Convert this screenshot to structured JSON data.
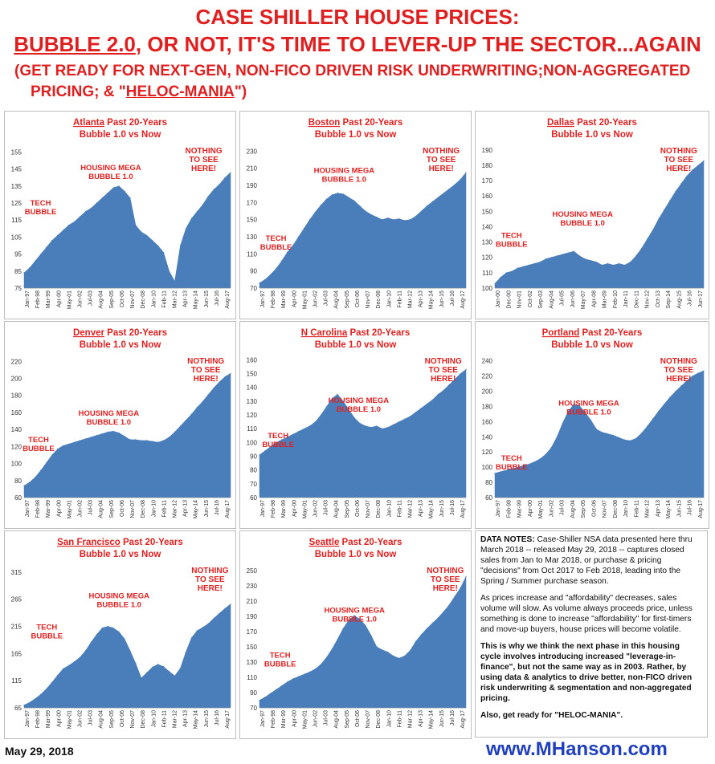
{
  "header": {
    "line1": "CASE SHILLER HOUSE PRICES:",
    "line2_a": "BUBBLE 2.0",
    "line2_b": ", OR NOT, IT'S TIME TO LEVER-UP THE SECTOR...AGAIN",
    "line3": "(GET READY FOR NEXT-GEN, NON-FICO DRIVEN RISK UNDERWRITING;NON-AGGREGATED",
    "line4_a": "PRICING; & \"",
    "line4_b": "HELOC-MANIA",
    "line4_c": "\")"
  },
  "notes": {
    "p1_label": "DATA NOTES:",
    "p1_text": " Case-Shiller NSA data presented here thru March 2018 -- released May 29, 2018 -- captures closed sales from Jan to Mar 2018, or purchase & pricing \"decisions\" from Oct 2017 to Feb 2018, leading into the Spring / Summer purchase season.",
    "p2": "As prices increase and \"affordability\" decreases, sales volume will slow. As volume always proceeds price, unless something is done to increase \"affordability\" for first-timers and move-up buyers, house prices will become volatile.",
    "p3": "This is why we think the next phase in this housing cycle involves introducing increased \"leverage-in-finance\", but not the same way as in 2003.  Rather,  by using data & analytics to drive better, non-FICO driven risk underwriting & segmentation  and non-aggregated pricing.",
    "p4": "Also, get ready for \"HELOC-MANIA\"."
  },
  "footer": {
    "date": "May 29, 2018",
    "site": "www.MHanson.com"
  },
  "colors": {
    "fill": "#4a7ebb",
    "title_red": "#e02020",
    "link_blue": "#1f3fbf"
  },
  "chart_data": [
    {
      "type": "area",
      "city": "Atlanta",
      "subtitle": " Past 20-Years",
      "subtitle2": "Bubble 1.0 vs Now",
      "yticks": [
        75,
        85,
        95,
        105,
        115,
        125,
        135,
        145,
        155
      ],
      "ylim": [
        75,
        158
      ],
      "xlabels": [
        "Jan-97",
        "Feb-98",
        "Mar-99",
        "Apr-00",
        "May-01",
        "Jun-02",
        "Jul-03",
        "Aug-04",
        "Sep-05",
        "Oct-06",
        "Nov-07",
        "Dec-08",
        "Jan-10",
        "Feb-11",
        "Mar-12",
        "Apr-13",
        "May-14",
        "Jun-15",
        "Jul-16",
        "Aug-17"
      ],
      "values": [
        84,
        87,
        91,
        95,
        99,
        103,
        106,
        109,
        112,
        114,
        117,
        120,
        122,
        125,
        128,
        131,
        134,
        135,
        132,
        128,
        112,
        108,
        106,
        103,
        100,
        96,
        85,
        79,
        100,
        110,
        116,
        120,
        124,
        129,
        133,
        136,
        140,
        143
      ],
      "annotations": [
        {
          "text": "TECH BUBBLE",
          "lines": [
            "TECH",
            "BUBBLE"
          ],
          "at": [
            0.08,
            0.37
          ]
        },
        {
          "text": "HOUSING MEGA BUBBLE 1.0",
          "lines": [
            "HOUSING MEGA",
            "BUBBLE 1.0"
          ],
          "at": [
            0.42,
            0.12
          ]
        },
        {
          "text": "NOTHING TO SEE HERE!",
          "lines": [
            "NOTHING",
            "TO SEE",
            "HERE!"
          ],
          "at": [
            0.87,
            0.0
          ]
        }
      ]
    },
    {
      "type": "area",
      "city": "Boston",
      "subtitle": " Past 20-Years",
      "subtitle2": "Bubble 1.0 vs Now",
      "yticks": [
        70,
        90,
        110,
        130,
        150,
        170,
        190,
        210,
        230
      ],
      "ylim": [
        70,
        235
      ],
      "xlabels": [
        "Jan-97",
        "Feb-98",
        "Mar-99",
        "Apr-00",
        "May-01",
        "Jun-02",
        "Jul-03",
        "Aug-04",
        "Sep-05",
        "Oct-06",
        "Nov-07",
        "Dec-08",
        "Jan-10",
        "Feb-11",
        "Mar-12",
        "Apr-13",
        "May-14",
        "Jun-15",
        "Jul-16",
        "Aug-17"
      ],
      "values": [
        76,
        80,
        86,
        93,
        102,
        112,
        120,
        130,
        140,
        150,
        159,
        167,
        174,
        179,
        181,
        180,
        176,
        172,
        166,
        160,
        156,
        153,
        150,
        152,
        150,
        151,
        149,
        150,
        154,
        160,
        166,
        171,
        176,
        181,
        186,
        191,
        197,
        205
      ],
      "annotations": [
        {
          "text": "TECH BUBBLE",
          "lines": [
            "TECH",
            "BUBBLE"
          ],
          "at": [
            0.08,
            0.62
          ]
        },
        {
          "text": "HOUSING MEGA BUBBLE 1.0",
          "lines": [
            "HOUSING MEGA",
            "BUBBLE 1.0"
          ],
          "at": [
            0.41,
            0.14
          ]
        },
        {
          "text": "NOTHING TO SEE HERE!",
          "lines": [
            "NOTHING",
            "TO SEE",
            "HERE!"
          ],
          "at": [
            0.88,
            0.0
          ]
        }
      ]
    },
    {
      "type": "area",
      "city": "Dallas",
      "subtitle": " Past 20-Years",
      "subtitle2": "Bubble 1.0 vs Now",
      "yticks": [
        100,
        110,
        120,
        130,
        140,
        150,
        160,
        170,
        180,
        190
      ],
      "ylim": [
        100,
        192
      ],
      "xlabels": [
        "Jan-00",
        "Dec-00",
        "Nov-01",
        "Oct-02",
        "Sep-03",
        "Aug-04",
        "Jul-05",
        "Jun-06",
        "May-07",
        "Apr-08",
        "Mar-09",
        "Feb-10",
        "Jan-11",
        "Dec-11",
        "Nov-12",
        "Oct-13",
        "Sep-14",
        "Aug-15",
        "Jul-16",
        "Jun-17"
      ],
      "values": [
        103,
        107,
        110,
        111,
        113,
        114,
        115,
        116,
        117,
        119,
        120,
        121,
        122,
        123,
        124,
        121,
        119,
        118,
        117,
        115,
        116,
        115,
        116,
        115,
        117,
        121,
        126,
        132,
        138,
        145,
        151,
        157,
        163,
        168,
        173,
        177,
        180,
        183
      ],
      "annotations": [
        {
          "text": "TECH BUBBLE",
          "lines": [
            "TECH",
            "BUBBLE"
          ],
          "at": [
            0.08,
            0.6
          ]
        },
        {
          "text": "HOUSING MEGA BUBBLE 1.0",
          "lines": [
            "HOUSING MEGA",
            "BUBBLE 1.0"
          ],
          "at": [
            0.42,
            0.45
          ]
        },
        {
          "text": "NOTHING TO SEE HERE!",
          "lines": [
            "NOTHING",
            "TO SEE",
            "HERE!"
          ],
          "at": [
            0.88,
            0.0
          ]
        }
      ]
    },
    {
      "type": "area",
      "city": "Denver",
      "subtitle": " Past 20-Years",
      "subtitle2": "Bubble 1.0 vs Now",
      "yticks": [
        60,
        80,
        100,
        120,
        140,
        160,
        180,
        200,
        220
      ],
      "ylim": [
        60,
        225
      ],
      "xlabels": [
        "Jan-97",
        "Feb-98",
        "Mar-99",
        "Apr-00",
        "May-01",
        "Jun-02",
        "Jul-03",
        "Aug-04",
        "Sep-05",
        "Oct-06",
        "Nov-07",
        "Dec-08",
        "Jan-10",
        "Feb-11",
        "Mar-12",
        "Apr-13",
        "May-14",
        "Jun-15",
        "Jul-16",
        "Aug-17"
      ],
      "values": [
        74,
        78,
        84,
        92,
        101,
        110,
        117,
        121,
        123,
        125,
        127,
        129,
        131,
        133,
        135,
        137,
        138,
        136,
        132,
        128,
        128,
        127,
        127,
        126,
        125,
        127,
        131,
        137,
        144,
        151,
        158,
        166,
        173,
        181,
        189,
        196,
        202,
        206
      ],
      "annotations": [
        {
          "text": "TECH BUBBLE",
          "lines": [
            "TECH",
            "BUBBLE"
          ],
          "at": [
            0.07,
            0.56
          ]
        },
        {
          "text": "HOUSING MEGA BUBBLE 1.0",
          "lines": [
            "HOUSING MEGA",
            "BUBBLE 1.0"
          ],
          "at": [
            0.41,
            0.37
          ]
        },
        {
          "text": "NOTHING TO SEE HERE!",
          "lines": [
            "NOTHING",
            "TO SEE",
            "HERE!"
          ],
          "at": [
            0.88,
            0.0
          ]
        }
      ]
    },
    {
      "type": "area",
      "city": "N Carolina",
      "subtitle": " Past 20-Years",
      "subtitle2": "Bubble 1.0 vs Now",
      "yticks": [
        60,
        70,
        80,
        90,
        100,
        110,
        120,
        130,
        140,
        150,
        160
      ],
      "ylim": [
        60,
        162
      ],
      "xlabels": [
        "Jan-97",
        "Feb-98",
        "Mar-99",
        "Apr-00",
        "May-01",
        "Jun-02",
        "Jul-03",
        "Aug-04",
        "Sep-05",
        "Oct-06",
        "Nov-07",
        "Dec-08",
        "Jan-10",
        "Feb-11",
        "Mar-12",
        "Apr-13",
        "May-14",
        "Jun-15",
        "Jul-16",
        "Aug-17"
      ],
      "values": [
        91,
        94,
        97,
        100,
        102,
        104,
        106,
        108,
        110,
        112,
        115,
        120,
        126,
        132,
        135,
        130,
        124,
        118,
        114,
        112,
        111,
        112,
        110,
        111,
        113,
        115,
        117,
        119,
        122,
        125,
        128,
        131,
        135,
        138,
        142,
        146,
        150,
        153
      ],
      "annotations": [
        {
          "text": "TECH BUBBLE",
          "lines": [
            "TECH",
            "BUBBLE"
          ],
          "at": [
            0.09,
            0.53
          ]
        },
        {
          "text": "HOUSING MEGA BUBBLE 1.0",
          "lines": [
            "HOUSING MEGA",
            "BUBBLE 1.0"
          ],
          "at": [
            0.48,
            0.28
          ]
        },
        {
          "text": "NOTHING TO SEE HERE!",
          "lines": [
            "NOTHING",
            "TO SEE",
            "HERE!"
          ],
          "at": [
            0.89,
            0.0
          ]
        }
      ]
    },
    {
      "type": "area",
      "city": "Portland",
      "subtitle": " Past 20-Years",
      "subtitle2": "Bubble 1.0 vs Now",
      "yticks": [
        60,
        80,
        100,
        120,
        140,
        160,
        180,
        200,
        220,
        240
      ],
      "ylim": [
        60,
        245
      ],
      "xlabels": [
        "Jan-97",
        "Feb-98",
        "Mar-99",
        "Apr-00",
        "May-01",
        "Jun-02",
        "Jul-03",
        "Aug-04",
        "Sep-05",
        "Oct-06",
        "Nov-07",
        "Dec-08",
        "Jan-10",
        "Feb-11",
        "Mar-12",
        "Apr-13",
        "May-14",
        "Jun-15",
        "Jul-16",
        "Aug-17"
      ],
      "values": [
        92,
        94,
        96,
        98,
        100,
        102,
        104,
        107,
        111,
        117,
        126,
        140,
        158,
        174,
        183,
        181,
        172,
        162,
        150,
        146,
        144,
        142,
        139,
        136,
        135,
        138,
        145,
        154,
        164,
        174,
        183,
        192,
        200,
        207,
        214,
        220,
        224,
        227
      ],
      "annotations": [
        {
          "text": "TECH BUBBLE",
          "lines": [
            "TECH",
            "BUBBLE"
          ],
          "at": [
            0.08,
            0.69
          ]
        },
        {
          "text": "HOUSING MEGA BUBBLE 1.0",
          "lines": [
            "HOUSING MEGA",
            "BUBBLE 1.0"
          ],
          "at": [
            0.45,
            0.3
          ]
        },
        {
          "text": "NOTHING TO SEE HERE!",
          "lines": [
            "NOTHING",
            "TO SEE",
            "HERE!"
          ],
          "at": [
            0.88,
            0.0
          ]
        }
      ]
    },
    {
      "type": "area",
      "city": "San Francisco",
      "subtitle": " Past 20-Years",
      "subtitle2": "Bubble 1.0 vs Now",
      "yticks": [
        65,
        115,
        165,
        215,
        265,
        315
      ],
      "ylim": [
        65,
        325
      ],
      "xlabels": [
        "Jan-97",
        "Feb-98",
        "Mar-99",
        "Apr-00",
        "May-01",
        "Jun-02",
        "Jul-03",
        "Aug-04",
        "Sep-05",
        "Oct-06",
        "Nov-07",
        "Dec-08",
        "Jan-10",
        "Feb-11",
        "Mar-12",
        "Apr-13",
        "May-14",
        "Jun-15",
        "Jul-16",
        "Aug-17"
      ],
      "values": [
        70,
        75,
        82,
        90,
        100,
        112,
        125,
        137,
        143,
        150,
        158,
        170,
        186,
        200,
        212,
        215,
        212,
        205,
        192,
        170,
        147,
        120,
        130,
        140,
        145,
        141,
        132,
        124,
        138,
        168,
        194,
        207,
        213,
        220,
        230,
        239,
        248,
        256
      ],
      "annotations": [
        {
          "text": "TECH BUBBLE",
          "lines": [
            "TECH",
            "BUBBLE"
          ],
          "at": [
            0.11,
            0.4
          ]
        },
        {
          "text": "HOUSING MEGA BUBBLE 1.0",
          "lines": [
            "HOUSING MEGA",
            "BUBBLE 1.0"
          ],
          "at": [
            0.46,
            0.18
          ]
        },
        {
          "text": "NOTHING TO SEE HERE!",
          "lines": [
            "NOTHING",
            "TO SEE",
            "HERE!"
          ],
          "at": [
            0.9,
            0.0
          ]
        }
      ]
    },
    {
      "type": "area",
      "city": "Seattle",
      "subtitle": " Past 20-Years",
      "subtitle2": "Bubble 1.0 vs Now",
      "yticks": [
        70,
        90,
        110,
        130,
        150,
        170,
        190,
        210,
        230,
        250
      ],
      "ylim": [
        70,
        255
      ],
      "xlabels": [
        "Jan-97",
        "Feb-98",
        "Mar-99",
        "Apr-00",
        "May-01",
        "Jun-02",
        "Jul-03",
        "Aug-04",
        "Sep-05",
        "Oct-06",
        "Nov-07",
        "Dec-08",
        "Jan-10",
        "Feb-11",
        "Mar-12",
        "Apr-13",
        "May-14",
        "Jun-15",
        "Jul-16",
        "Aug-17"
      ],
      "values": [
        80,
        84,
        89,
        94,
        99,
        104,
        108,
        111,
        114,
        117,
        121,
        127,
        136,
        147,
        160,
        174,
        185,
        191,
        186,
        178,
        165,
        150,
        146,
        143,
        138,
        135,
        138,
        145,
        157,
        166,
        174,
        181,
        188,
        196,
        205,
        216,
        227,
        242
      ],
      "annotations": [
        {
          "text": "TECH BUBBLE",
          "lines": [
            "TECH",
            "BUBBLE"
          ],
          "at": [
            0.1,
            0.6
          ]
        },
        {
          "text": "HOUSING MEGA BUBBLE 1.0",
          "lines": [
            "HOUSING MEGA",
            "BUBBLE 1.0"
          ],
          "at": [
            0.46,
            0.28
          ]
        },
        {
          "text": "NOTHING TO SEE HERE!",
          "lines": [
            "NOTHING",
            "TO SEE",
            "HERE!"
          ],
          "at": [
            0.9,
            0.0
          ]
        }
      ]
    }
  ]
}
